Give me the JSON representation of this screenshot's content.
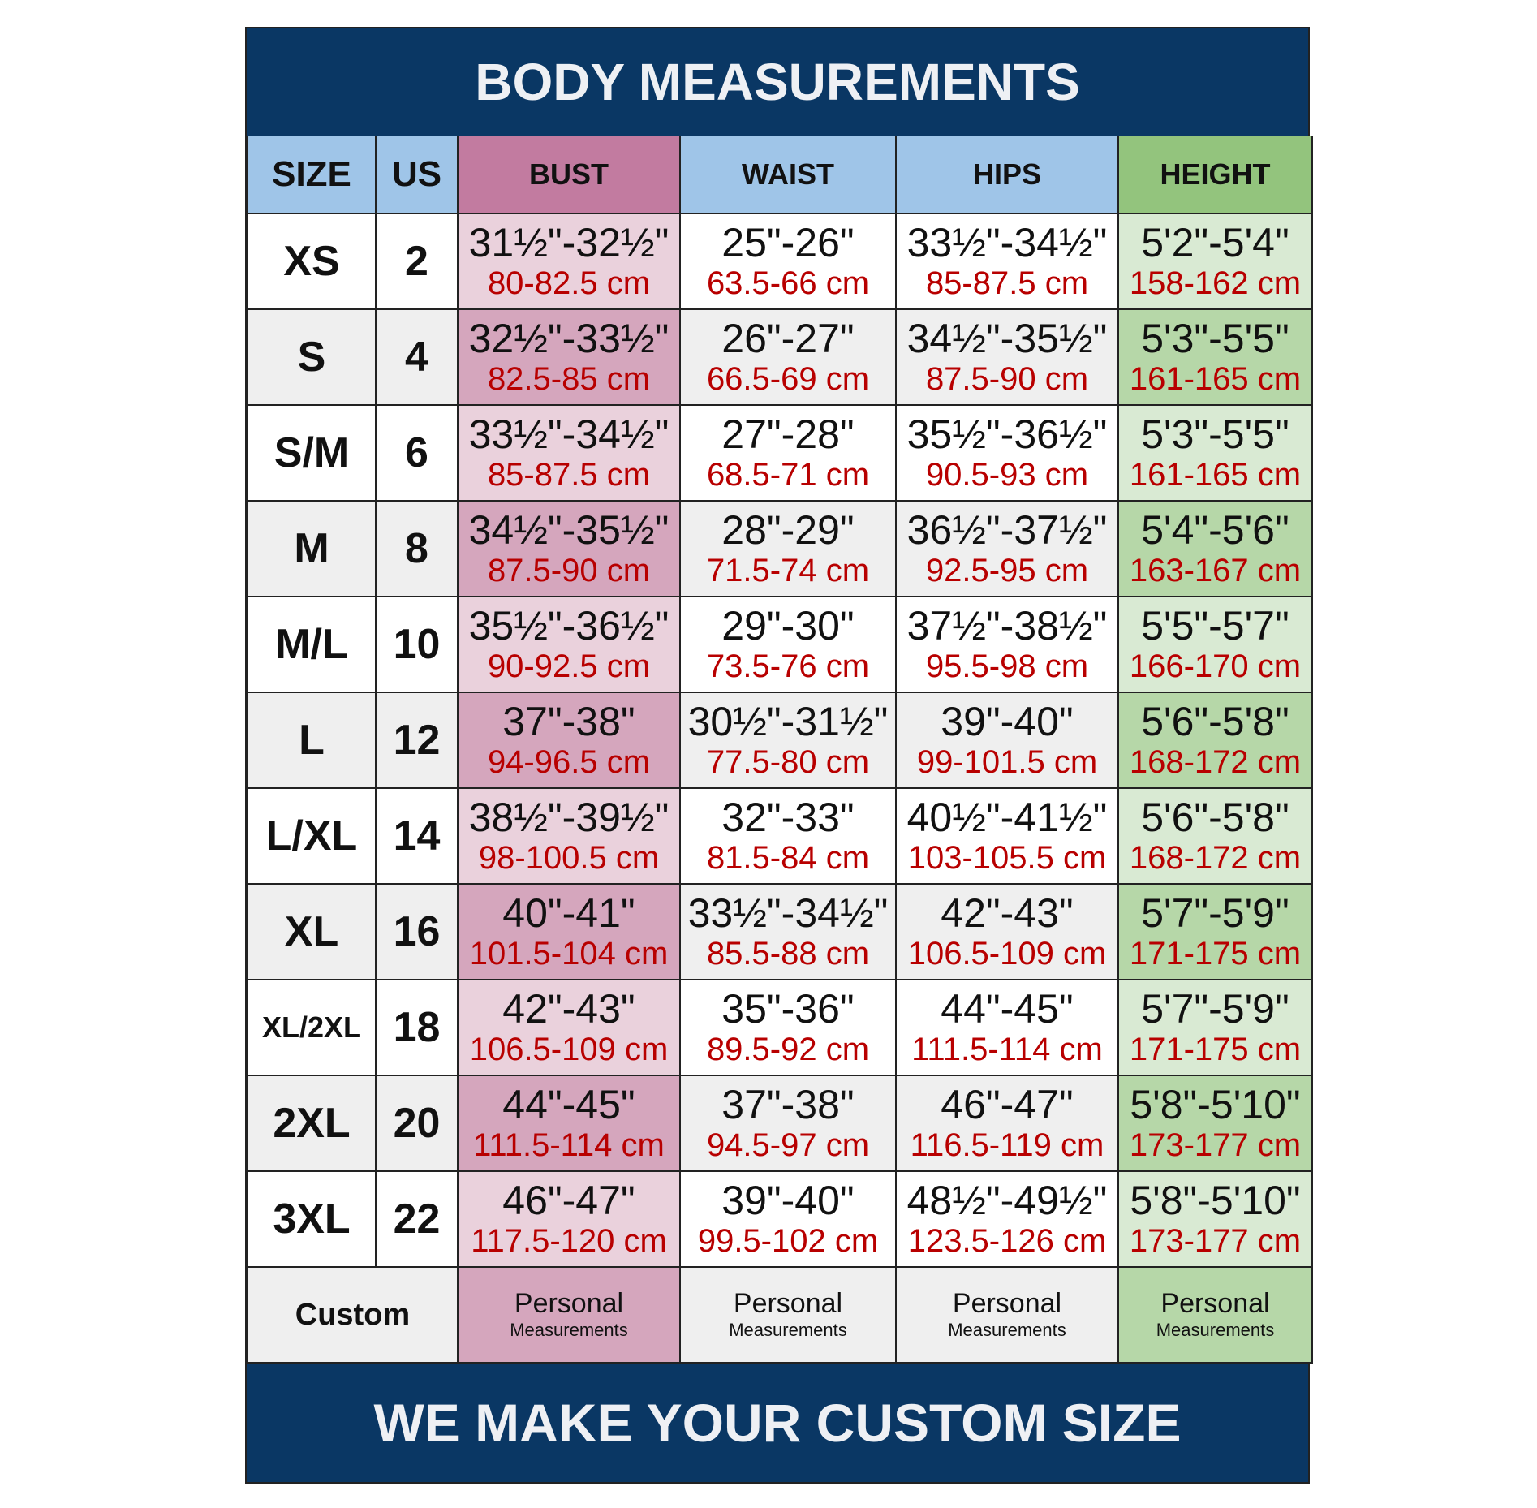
{
  "title": "BODY MEASUREMENTS",
  "footer": "WE MAKE YOUR CUSTOM SIZE",
  "colors": {
    "navy": "#0a3764",
    "header_blue": "#9fc5e8",
    "bust_header": "#c27ba0",
    "height_header": "#93c47d",
    "cm_red": "#b80000"
  },
  "headers": [
    "SIZE",
    "US",
    "BUST",
    "WAIST",
    "HIPS",
    "HEIGHT"
  ],
  "rows": [
    {
      "size": "XS",
      "us": "2",
      "bust": [
        "31½\"-32½\"",
        "80-82.5 cm"
      ],
      "waist": [
        "25\"-26\"",
        "63.5-66 cm"
      ],
      "hips": [
        "33½\"-34½\"",
        "85-87.5 cm"
      ],
      "height": [
        "5'2\"-5'4\"",
        "158-162 cm"
      ]
    },
    {
      "size": "S",
      "us": "4",
      "bust": [
        "32½\"-33½\"",
        "82.5-85 cm"
      ],
      "waist": [
        "26\"-27\"",
        "66.5-69 cm"
      ],
      "hips": [
        "34½\"-35½\"",
        "87.5-90 cm"
      ],
      "height": [
        "5'3\"-5'5\"",
        "161-165 cm"
      ]
    },
    {
      "size": "S/M",
      "us": "6",
      "bust": [
        "33½\"-34½\"",
        "85-87.5 cm"
      ],
      "waist": [
        "27\"-28\"",
        "68.5-71 cm"
      ],
      "hips": [
        "35½\"-36½\"",
        "90.5-93 cm"
      ],
      "height": [
        "5'3\"-5'5\"",
        "161-165 cm"
      ]
    },
    {
      "size": "M",
      "us": "8",
      "bust": [
        "34½\"-35½\"",
        "87.5-90 cm"
      ],
      "waist": [
        "28\"-29\"",
        "71.5-74 cm"
      ],
      "hips": [
        "36½\"-37½\"",
        "92.5-95 cm"
      ],
      "height": [
        "5'4\"-5'6\"",
        "163-167 cm"
      ]
    },
    {
      "size": "M/L",
      "us": "10",
      "bust": [
        "35½\"-36½\"",
        "90-92.5 cm"
      ],
      "waist": [
        "29\"-30\"",
        "73.5-76 cm"
      ],
      "hips": [
        "37½\"-38½\"",
        "95.5-98 cm"
      ],
      "height": [
        "5'5\"-5'7\"",
        "166-170 cm"
      ]
    },
    {
      "size": "L",
      "us": "12",
      "bust": [
        "37\"-38\"",
        "94-96.5 cm"
      ],
      "waist": [
        "30½\"-31½\"",
        "77.5-80 cm"
      ],
      "hips": [
        "39\"-40\"",
        "99-101.5 cm"
      ],
      "height": [
        "5'6\"-5'8\"",
        "168-172 cm"
      ]
    },
    {
      "size": "L/XL",
      "us": "14",
      "bust": [
        "38½\"-39½\"",
        "98-100.5 cm"
      ],
      "waist": [
        "32\"-33\"",
        "81.5-84 cm"
      ],
      "hips": [
        "40½\"-41½\"",
        "103-105.5 cm"
      ],
      "height": [
        "5'6\"-5'8\"",
        "168-172 cm"
      ]
    },
    {
      "size": "XL",
      "us": "16",
      "bust": [
        "40\"-41\"",
        "101.5-104 cm"
      ],
      "waist": [
        "33½\"-34½\"",
        "85.5-88 cm"
      ],
      "hips": [
        "42\"-43\"",
        "106.5-109 cm"
      ],
      "height": [
        "5'7\"-5'9\"",
        "171-175 cm"
      ]
    },
    {
      "size": "XL/2XL",
      "us": "18",
      "bust": [
        "42\"-43\"",
        "106.5-109 cm"
      ],
      "waist": [
        "35\"-36\"",
        "89.5-92 cm"
      ],
      "hips": [
        "44\"-45\"",
        "111.5-114 cm"
      ],
      "height": [
        "5'7\"-5'9\"",
        "171-175 cm"
      ]
    },
    {
      "size": "2XL",
      "us": "20",
      "bust": [
        "44\"-45\"",
        "111.5-114 cm"
      ],
      "waist": [
        "37\"-38\"",
        "94.5-97 cm"
      ],
      "hips": [
        "46\"-47\"",
        "116.5-119 cm"
      ],
      "height": [
        "5'8\"-5'10\"",
        "173-177 cm"
      ]
    },
    {
      "size": "3XL",
      "us": "22",
      "bust": [
        "46\"-47\"",
        "117.5-120 cm"
      ],
      "waist": [
        "39\"-40\"",
        "99.5-102 cm"
      ],
      "hips": [
        "48½\"-49½\"",
        "123.5-126 cm"
      ],
      "height": [
        "5'8\"-5'10\"",
        "173-177 cm"
      ]
    }
  ],
  "custom": {
    "label": "Custom",
    "line1": "Personal",
    "line2": "Measurements"
  }
}
